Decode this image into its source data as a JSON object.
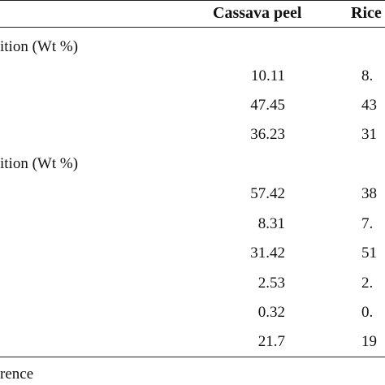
{
  "table": {
    "headers": [
      "Cassava peel",
      "Rice"
    ],
    "sections": [
      {
        "title": "ition (Wt %)",
        "rows": [
          [
            "10.11",
            "8."
          ],
          [
            "47.45",
            "43"
          ],
          [
            "36.23",
            "31"
          ]
        ]
      },
      {
        "title": "ition (Wt %)",
        "rows": [
          [
            "57.42",
            "38"
          ],
          [
            "8.31",
            "7."
          ],
          [
            "31.42",
            "51"
          ],
          [
            "2.53",
            "2."
          ],
          [
            "0.32",
            "0."
          ],
          [
            "21.7",
            "19"
          ]
        ]
      }
    ],
    "footer": "rence"
  }
}
